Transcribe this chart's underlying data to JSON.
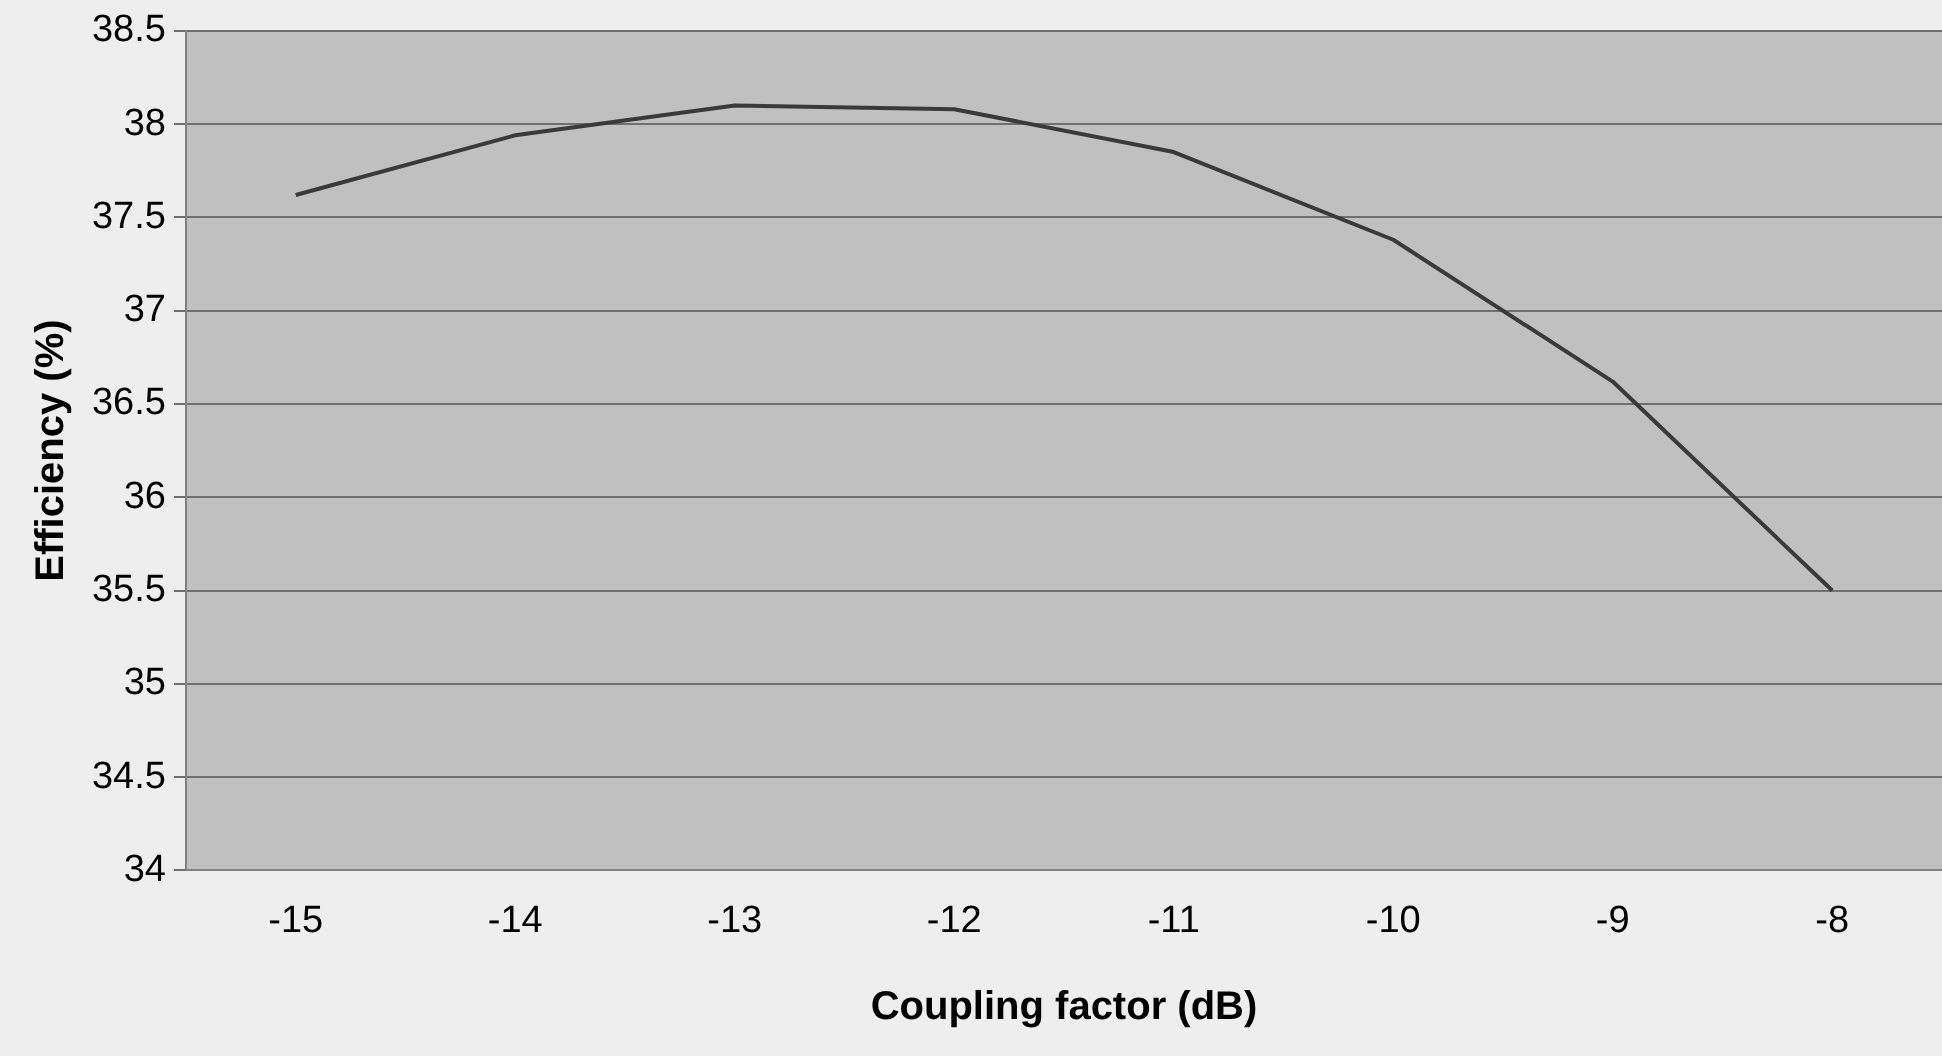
{
  "chart_data": {
    "type": "line",
    "xlabel": "Coupling factor (dB)",
    "ylabel": "Efficiency (%)",
    "categories": [
      "-15",
      "-14",
      "-13",
      "-12",
      "-11",
      "-10",
      "-9",
      "-8"
    ],
    "series": [
      {
        "color": "#3a3a3a",
        "values": [
          37.62,
          37.94,
          38.1,
          38.08,
          37.85,
          37.38,
          36.62,
          35.5
        ]
      }
    ],
    "ylim": [
      34,
      38.5
    ],
    "yticks": [
      34,
      34.5,
      35,
      35.5,
      36,
      36.5,
      37,
      37.5,
      38,
      38.5
    ],
    "grid": "y",
    "legend": false,
    "marker": "none"
  }
}
